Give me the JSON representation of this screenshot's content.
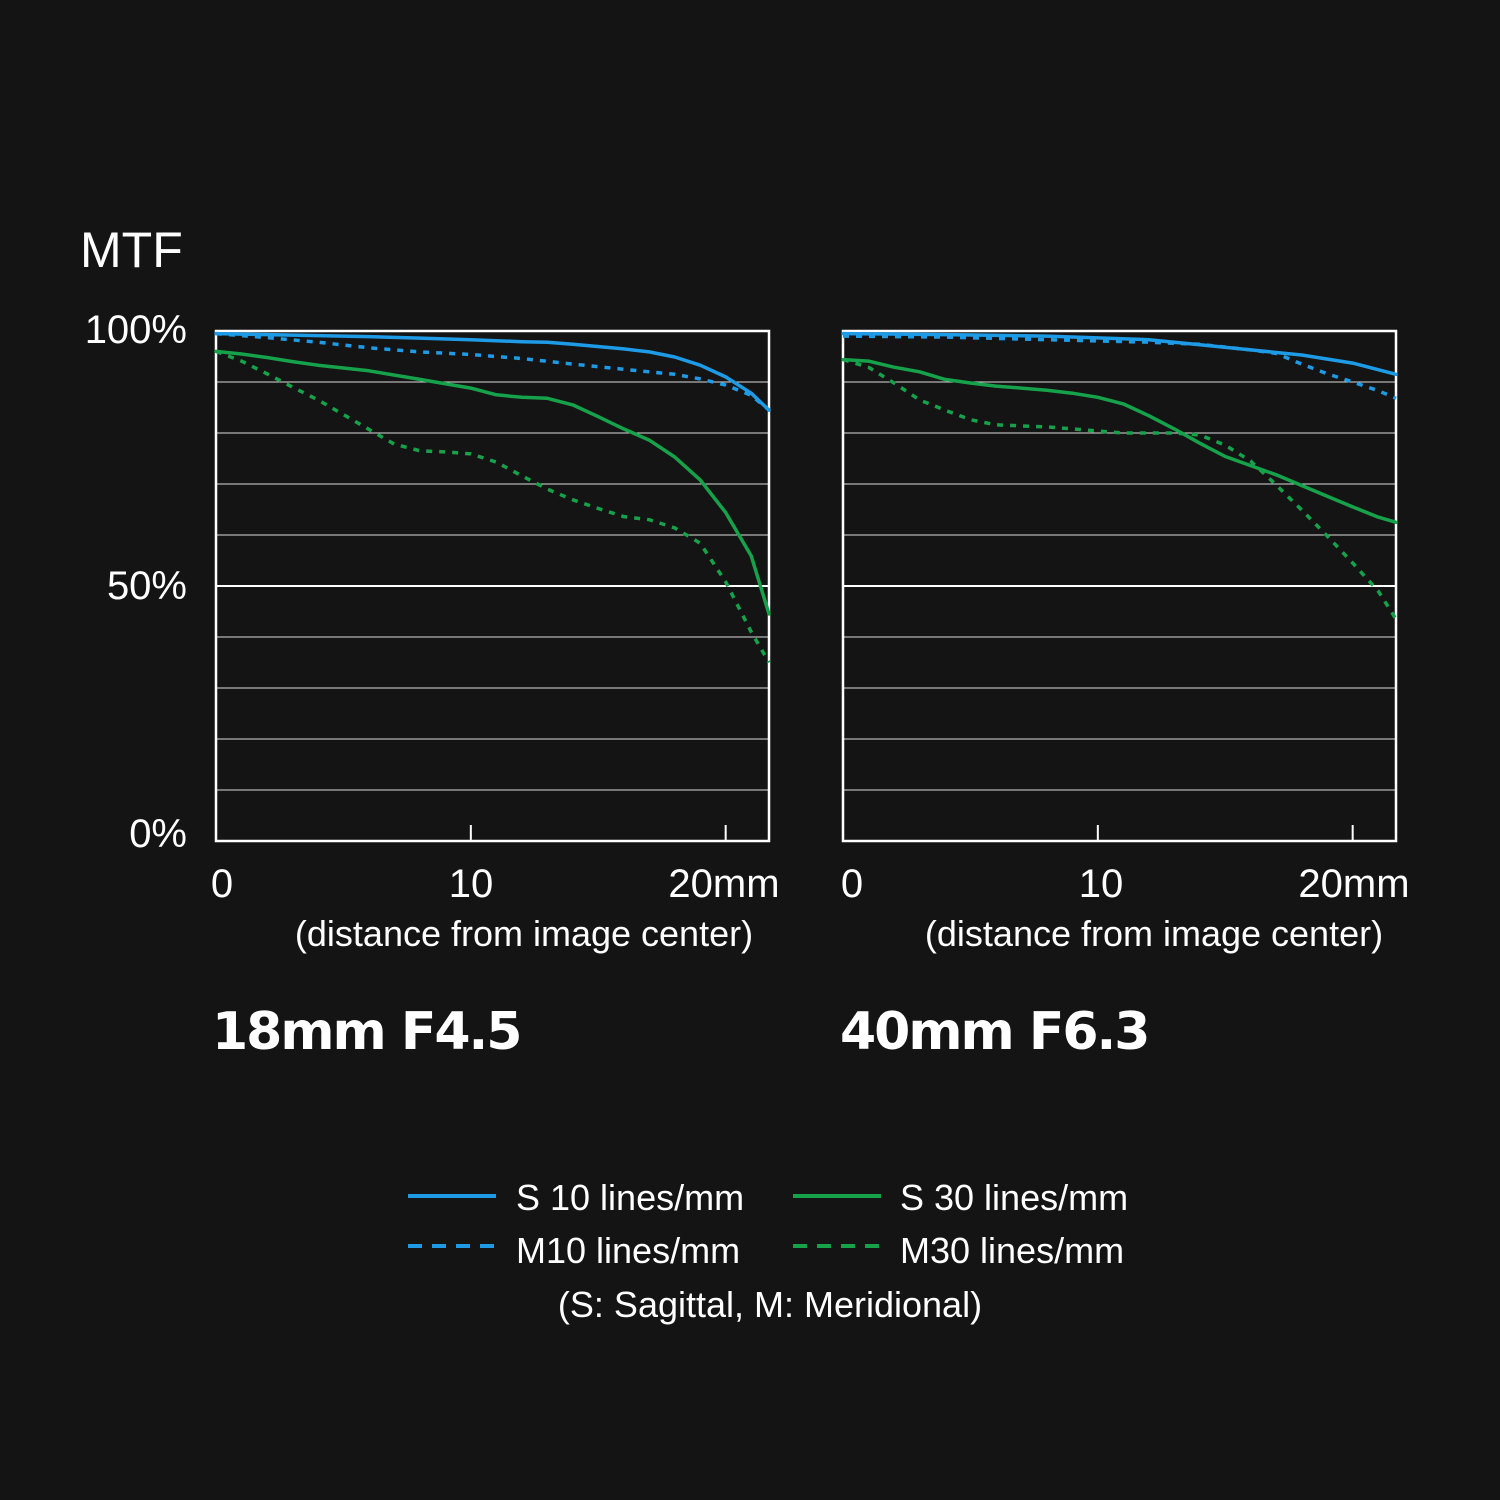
{
  "chart_data": {
    "type": "line",
    "y_axis": {
      "title": "MTF",
      "ticks": [
        "100%",
        "50%",
        "0%"
      ],
      "ylim": [
        0,
        100
      ],
      "unit": "%"
    },
    "x_axis": {
      "xlim": [
        0,
        21.7
      ],
      "ticks": [
        "0",
        "10",
        "20mm"
      ],
      "label": "(distance from image center)"
    },
    "grid": true,
    "styles": {
      "S10": {
        "color": "#1e9be6",
        "dashed": false
      },
      "M10": {
        "color": "#1e9be6",
        "dashed": true
      },
      "S30": {
        "color": "#16a24a",
        "dashed": false
      },
      "M30": {
        "color": "#16a24a",
        "dashed": true
      }
    },
    "panels": [
      {
        "title": "18mm F4.5",
        "series": [
          {
            "key": "S10",
            "name": "S 10 lines/mm",
            "x": [
              0,
              2,
              4,
              6,
              8,
              10,
              12,
              13,
              14,
              16,
              17,
              18,
              19,
              20,
              21,
              21.7
            ],
            "y": [
              99.5,
              99.3,
              99.1,
              98.9,
              98.6,
              98.3,
              97.9,
              97.8,
              97.4,
              96.5,
              95.9,
              94.9,
              93.3,
              91.0,
              87.8,
              84.5
            ]
          },
          {
            "key": "M10",
            "name": "M10 lines/mm",
            "x": [
              0,
              2,
              4,
              6,
              8,
              10,
              12,
              14,
              16,
              18,
              19,
              20,
              21,
              21.7
            ],
            "y": [
              99.5,
              98.7,
              97.8,
              96.7,
              95.9,
              95.4,
              94.6,
              93.5,
              92.5,
              91.5,
              90.6,
              89.4,
              87.4,
              84.5
            ]
          },
          {
            "key": "S30",
            "name": "S 30 lines/mm",
            "x": [
              0,
              1,
              2,
              3,
              4,
              6,
              8,
              10,
              11,
              12,
              13,
              14,
              15,
              16,
              17,
              18,
              19,
              20,
              21,
              21.7
            ],
            "y": [
              96.0,
              95.5,
              94.8,
              94.0,
              93.3,
              92.2,
              90.5,
              88.8,
              87.5,
              87.0,
              86.8,
              85.5,
              83.2,
              80.8,
              78.6,
              75.3,
              70.8,
              64.4,
              55.9,
              44.5
            ]
          },
          {
            "key": "M30",
            "name": "M30 lines/mm",
            "x": [
              0,
              1,
              2,
              3,
              4,
              5,
              6,
              7,
              8,
              9,
              10,
              11,
              12,
              13,
              14,
              15,
              16,
              17,
              18,
              19,
              20,
              21,
              21.7
            ],
            "y": [
              96.0,
              94.1,
              91.6,
              89.0,
              86.5,
              83.6,
              80.7,
              77.8,
              76.5,
              76.3,
              75.9,
              74.3,
              71.6,
              69.0,
              66.9,
              65.2,
              63.6,
              63.0,
              61.4,
              58.4,
              50.8,
              41.0,
              35.0
            ]
          }
        ]
      },
      {
        "title": "40mm F6.3",
        "series": [
          {
            "key": "S10",
            "name": "S 10 lines/mm",
            "x": [
              0,
              4,
              8,
              12,
              14,
              16,
              18,
              20,
              21.7
            ],
            "y": [
              99.5,
              99.3,
              99.0,
              98.3,
              97.3,
              96.3,
              95.3,
              93.7,
              91.5
            ]
          },
          {
            "key": "M10",
            "name": "M10 lines/mm",
            "x": [
              0,
              4,
              8,
              12,
              14,
              16,
              17,
              18,
              19,
              20,
              21,
              21.7
            ],
            "y": [
              99.0,
              98.8,
              98.3,
              97.8,
              97.4,
              96.3,
              95.6,
              93.5,
              91.6,
              90.0,
              88.3,
              86.8
            ]
          },
          {
            "key": "S30",
            "name": "S 30 lines/mm",
            "x": [
              0,
              1,
              2,
              3,
              4,
              5,
              6,
              7,
              8,
              9,
              10,
              11,
              12,
              13,
              14,
              15,
              16,
              17,
              18,
              19,
              20,
              21,
              21.7
            ],
            "y": [
              94.4,
              94.1,
              92.9,
              92.0,
              90.5,
              89.8,
              89.2,
              88.8,
              88.4,
              87.8,
              87.0,
              85.7,
              83.4,
              80.8,
              78.0,
              75.4,
              73.6,
              71.8,
              69.7,
              67.6,
              65.5,
              63.5,
              62.5
            ]
          },
          {
            "key": "M30",
            "name": "M30 lines/mm",
            "x": [
              0,
              1,
              2,
              3,
              4,
              5,
              6,
              7,
              8,
              9,
              10,
              11,
              12,
              13,
              14,
              15,
              16,
              17,
              18,
              19,
              20,
              21,
              21.7
            ],
            "y": [
              94.4,
              92.9,
              89.8,
              86.5,
              84.5,
              82.6,
              81.6,
              81.4,
              81.2,
              80.8,
              80.4,
              80.0,
              80.0,
              80.0,
              79.6,
              77.6,
              74.5,
              69.8,
              64.9,
              59.8,
              54.5,
              49.0,
              43.5
            ]
          }
        ]
      }
    ],
    "legend": {
      "items": [
        {
          "key": "S10",
          "label": "S 10 lines/mm"
        },
        {
          "key": "S30",
          "label": "S 30 lines/mm"
        },
        {
          "key": "M10",
          "label": "M10 lines/mm"
        },
        {
          "key": "M30",
          "label": "M30 lines/mm"
        }
      ],
      "note": "(S: Sagittal, M: Meridional)"
    }
  }
}
